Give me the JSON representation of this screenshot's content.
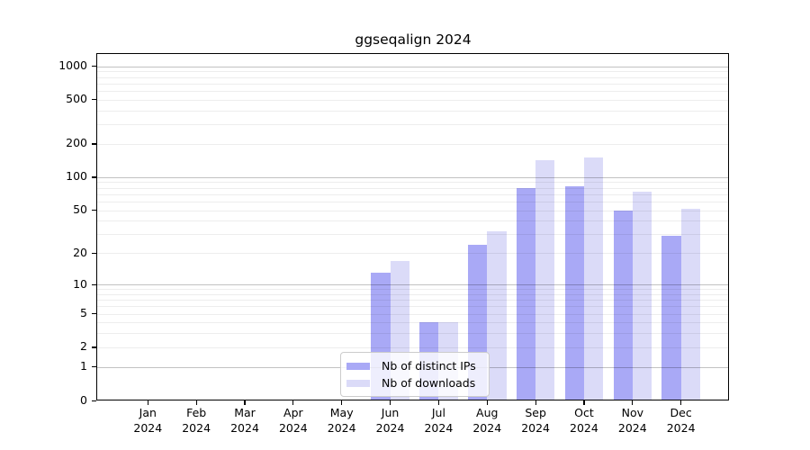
{
  "chart_data": {
    "type": "bar",
    "title": "ggseqalign 2024",
    "categories": [
      "Jan",
      "Feb",
      "Mar",
      "Apr",
      "May",
      "Jun",
      "Jul",
      "Aug",
      "Sep",
      "Oct",
      "Nov",
      "Dec"
    ],
    "x_year_label": "2024",
    "series": [
      {
        "name": "Nb of distinct IPs",
        "color": "#a9a9f6",
        "values": [
          0,
          0,
          0,
          0,
          0,
          13,
          4,
          24,
          80,
          83,
          50,
          29
        ]
      },
      {
        "name": "Nb of downloads",
        "color": "#dbdbf8",
        "values": [
          0,
          0,
          0,
          0,
          0,
          17,
          4,
          32,
          143,
          150,
          74,
          52
        ]
      }
    ],
    "yscale": "log10(1+y)",
    "yticks": [
      0,
      1,
      2,
      5,
      10,
      20,
      50,
      100,
      200,
      500,
      1000
    ],
    "ylim": [
      0,
      1310
    ],
    "grid_major": [
      1,
      10,
      100,
      1000
    ],
    "grid_minor_rule": "2-9 per decade",
    "legend_position": "lower center",
    "xlabel": "",
    "ylabel": ""
  }
}
